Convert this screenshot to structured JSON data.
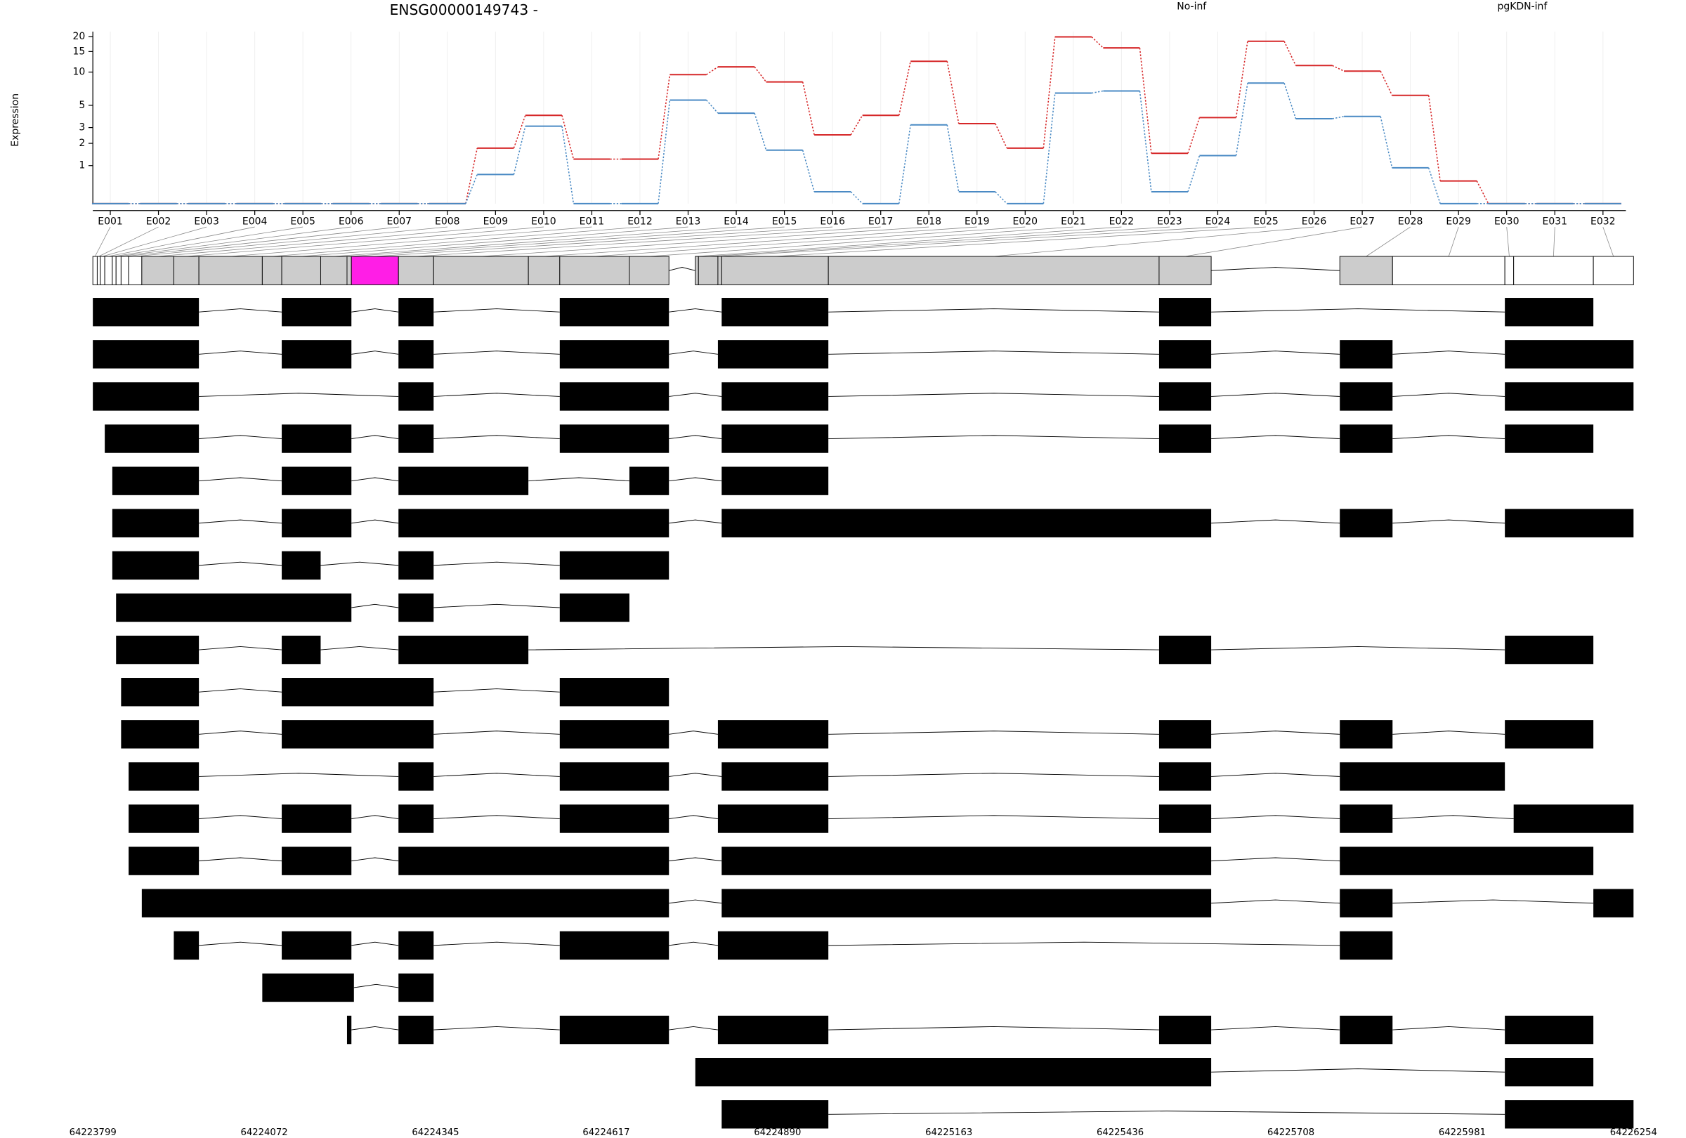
{
  "chart_data": {
    "type": "line",
    "title": "ENSG00000149743 -",
    "y_label": "Expression",
    "categories": [
      "E001",
      "E002",
      "E003",
      "E004",
      "E005",
      "E006",
      "E007",
      "E008",
      "E009",
      "E010",
      "E011",
      "E012",
      "E013",
      "E014",
      "E015",
      "E016",
      "E017",
      "E018",
      "E019",
      "E020",
      "E021",
      "E022",
      "E023",
      "E024",
      "E025",
      "E026",
      "E027",
      "E028",
      "E029",
      "E030",
      "E031",
      "E032"
    ],
    "series": [
      {
        "name": "No-inf",
        "color": "#d62728",
        "values": [
          0,
          0,
          0,
          0,
          0,
          0,
          0,
          0,
          1.75,
          4.0,
          1.25,
          1.25,
          9.5,
          11.1,
          8.2,
          2.5,
          4.0,
          12.4,
          3.3,
          1.75,
          19.9,
          16.1,
          1.5,
          3.8,
          18.3,
          11.4,
          10.2,
          6.2,
          0.51,
          0,
          0,
          0
        ]
      },
      {
        "name": "pgKDN-inf",
        "color": "#4a8ac4",
        "values": [
          0,
          0,
          0,
          0,
          0,
          0,
          0,
          0,
          0.7,
          3.1,
          0,
          0,
          5.6,
          4.2,
          1.65,
          0.24,
          0,
          3.2,
          0.24,
          0,
          6.5,
          6.8,
          0.24,
          1.4,
          8.0,
          3.7,
          3.9,
          0.92,
          0,
          0,
          0,
          0
        ]
      }
    ],
    "ylim": [
      0,
      22
    ],
    "yticks": [
      1,
      2,
      3,
      5,
      10,
      15,
      20
    ],
    "yscale": "log1p",
    "grid": true,
    "legend": "top"
  },
  "gene_model": {
    "xlim": [
      64223799,
      64226254
    ],
    "xticks": [
      64223799,
      64224072,
      64224345,
      64224617,
      64224890,
      64225163,
      64225436,
      64225708,
      64225981,
      64226254
    ],
    "exons": [
      {
        "start": 64223799,
        "end": 64223806,
        "color": "#ffffff"
      },
      {
        "start": 64223806,
        "end": 64223811,
        "color": "#ffffff"
      },
      {
        "start": 64223811,
        "end": 64223818,
        "color": "#ffffff"
      },
      {
        "start": 64223818,
        "end": 64223830,
        "color": "#ffffff"
      },
      {
        "start": 64223830,
        "end": 64223836,
        "color": "#ffffff"
      },
      {
        "start": 64223836,
        "end": 64223844,
        "color": "#ffffff"
      },
      {
        "start": 64223844,
        "end": 64223856,
        "color": "#ffffff"
      },
      {
        "start": 64223856,
        "end": 64223877,
        "color": "#ffffff"
      },
      {
        "start": 64223877,
        "end": 64223928,
        "color": "#cccccc"
      },
      {
        "start": 64223928,
        "end": 64223968,
        "color": "#cccccc"
      },
      {
        "start": 64223968,
        "end": 64224069,
        "color": "#cccccc"
      },
      {
        "start": 64224069,
        "end": 64224100,
        "color": "#cccccc"
      },
      {
        "start": 64224100,
        "end": 64224162,
        "color": "#cccccc"
      },
      {
        "start": 64224162,
        "end": 64224204,
        "color": "#cccccc"
      },
      {
        "start": 64224204,
        "end": 64224211,
        "color": "#cccccc"
      },
      {
        "start": 64224211,
        "end": 64224286,
        "color": "#ff1ee6"
      },
      {
        "start": 64224286,
        "end": 64224342,
        "color": "#cccccc"
      },
      {
        "start": 64224342,
        "end": 64224493,
        "color": "#cccccc"
      },
      {
        "start": 64224493,
        "end": 64224543,
        "color": "#cccccc"
      },
      {
        "start": 64224543,
        "end": 64224654,
        "color": "#cccccc"
      },
      {
        "start": 64224654,
        "end": 64224717,
        "color": "#cccccc"
      },
      {
        "start": 64224759,
        "end": 64224764,
        "color": "#cccccc"
      },
      {
        "start": 64224764,
        "end": 64224795,
        "color": "#cccccc"
      },
      {
        "start": 64224795,
        "end": 64224801,
        "color": "#cccccc"
      },
      {
        "start": 64224801,
        "end": 64224971,
        "color": "#cccccc"
      },
      {
        "start": 64224971,
        "end": 64225498,
        "color": "#cccccc"
      },
      {
        "start": 64225498,
        "end": 64225581,
        "color": "#cccccc"
      },
      {
        "start": 64225786,
        "end": 64225870,
        "color": "#cccccc"
      },
      {
        "start": 64225870,
        "end": 64226049,
        "color": "#ffffff"
      },
      {
        "start": 64226049,
        "end": 64226063,
        "color": "#ffffff"
      },
      {
        "start": 64226063,
        "end": 64226190,
        "color": "#ffffff"
      },
      {
        "start": 64226190,
        "end": 64226254,
        "color": "#ffffff"
      }
    ],
    "transcripts": [
      [
        [
          64223799,
          64223968
        ],
        [
          64224100,
          64224211
        ],
        [
          64224286,
          64224342
        ],
        [
          64224543,
          64224717
        ],
        [
          64224801,
          64224971
        ],
        [
          64225498,
          64225581
        ],
        [
          64226049,
          64226190
        ]
      ],
      [
        [
          64223799,
          64223968
        ],
        [
          64224100,
          64224211
        ],
        [
          64224286,
          64224342
        ],
        [
          64224543,
          64224717
        ],
        [
          64224795,
          64224971
        ],
        [
          64225498,
          64225581
        ],
        [
          64225786,
          64225870
        ],
        [
          64226049,
          64226254
        ]
      ],
      [
        [
          64223799,
          64223968
        ],
        [
          64224286,
          64224342
        ],
        [
          64224543,
          64224717
        ],
        [
          64224801,
          64224971
        ],
        [
          64225498,
          64225581
        ],
        [
          64225786,
          64225870
        ],
        [
          64226049,
          64226254
        ]
      ],
      [
        [
          64223818,
          64223968
        ],
        [
          64224100,
          64224211
        ],
        [
          64224286,
          64224342
        ],
        [
          64224543,
          64224717
        ],
        [
          64224801,
          64224971
        ],
        [
          64225498,
          64225581
        ],
        [
          64225786,
          64225870
        ],
        [
          64226049,
          64226190
        ]
      ],
      [
        [
          64223830,
          64223968
        ],
        [
          64224100,
          64224211
        ],
        [
          64224286,
          64224493
        ],
        [
          64224654,
          64224717
        ],
        [
          64224801,
          64224971
        ]
      ],
      [
        [
          64223830,
          64223968
        ],
        [
          64224100,
          64224211
        ],
        [
          64224286,
          64224717
        ],
        [
          64224801,
          64225581
        ],
        [
          64225786,
          64225870
        ],
        [
          64226049,
          64226254
        ]
      ],
      [
        [
          64223830,
          64223968
        ],
        [
          64224100,
          64224162
        ],
        [
          64224286,
          64224342
        ],
        [
          64224543,
          64224717
        ]
      ],
      [
        [
          64223836,
          64224211
        ],
        [
          64224286,
          64224342
        ],
        [
          64224543,
          64224654
        ]
      ],
      [
        [
          64223836,
          64223968
        ],
        [
          64224100,
          64224162
        ],
        [
          64224286,
          64224493
        ],
        [
          64225498,
          64225581
        ],
        [
          64226049,
          64226190
        ]
      ],
      [
        [
          64223844,
          64223968
        ],
        [
          64224100,
          64224342
        ],
        [
          64224543,
          64224717
        ]
      ],
      [
        [
          64223844,
          64223968
        ],
        [
          64224100,
          64224342
        ],
        [
          64224543,
          64224717
        ],
        [
          64224795,
          64224971
        ],
        [
          64225498,
          64225581
        ],
        [
          64225786,
          64225870
        ],
        [
          64226049,
          64226190
        ]
      ],
      [
        [
          64223856,
          64223968
        ],
        [
          64224286,
          64224342
        ],
        [
          64224543,
          64224717
        ],
        [
          64224801,
          64224971
        ],
        [
          64225498,
          64225581
        ],
        [
          64225786,
          64226049
        ]
      ],
      [
        [
          64223856,
          64223968
        ],
        [
          64224100,
          64224211
        ],
        [
          64224286,
          64224342
        ],
        [
          64224543,
          64224717
        ],
        [
          64224795,
          64224971
        ],
        [
          64225498,
          64225581
        ],
        [
          64225786,
          64225870
        ],
        [
          64226063,
          64226254
        ]
      ],
      [
        [
          64223856,
          64223968
        ],
        [
          64224100,
          64224211
        ],
        [
          64224286,
          64224717
        ],
        [
          64224801,
          64225581
        ],
        [
          64225786,
          64226190
        ]
      ],
      [
        [
          64223877,
          64224717
        ],
        [
          64224801,
          64225581
        ],
        [
          64225786,
          64225870
        ],
        [
          64226190,
          64226254
        ]
      ],
      [
        [
          64223928,
          64223968
        ],
        [
          64224100,
          64224211
        ],
        [
          64224286,
          64224342
        ],
        [
          64224543,
          64224717
        ],
        [
          64224795,
          64224971
        ],
        [
          64225786,
          64225870
        ]
      ],
      [
        [
          64224069,
          64224215
        ],
        [
          64224286,
          64224342
        ]
      ],
      [
        [
          64224204,
          64224211
        ],
        [
          64224286,
          64224342
        ],
        [
          64224543,
          64224717
        ],
        [
          64224795,
          64224971
        ],
        [
          64225498,
          64225581
        ],
        [
          64225786,
          64225870
        ],
        [
          64226049,
          64226190
        ]
      ],
      [
        [
          64224759,
          64225581
        ],
        [
          64226049,
          64226190
        ]
      ],
      [
        [
          64224801,
          64224971
        ],
        [
          64226049,
          64226254
        ]
      ]
    ]
  }
}
